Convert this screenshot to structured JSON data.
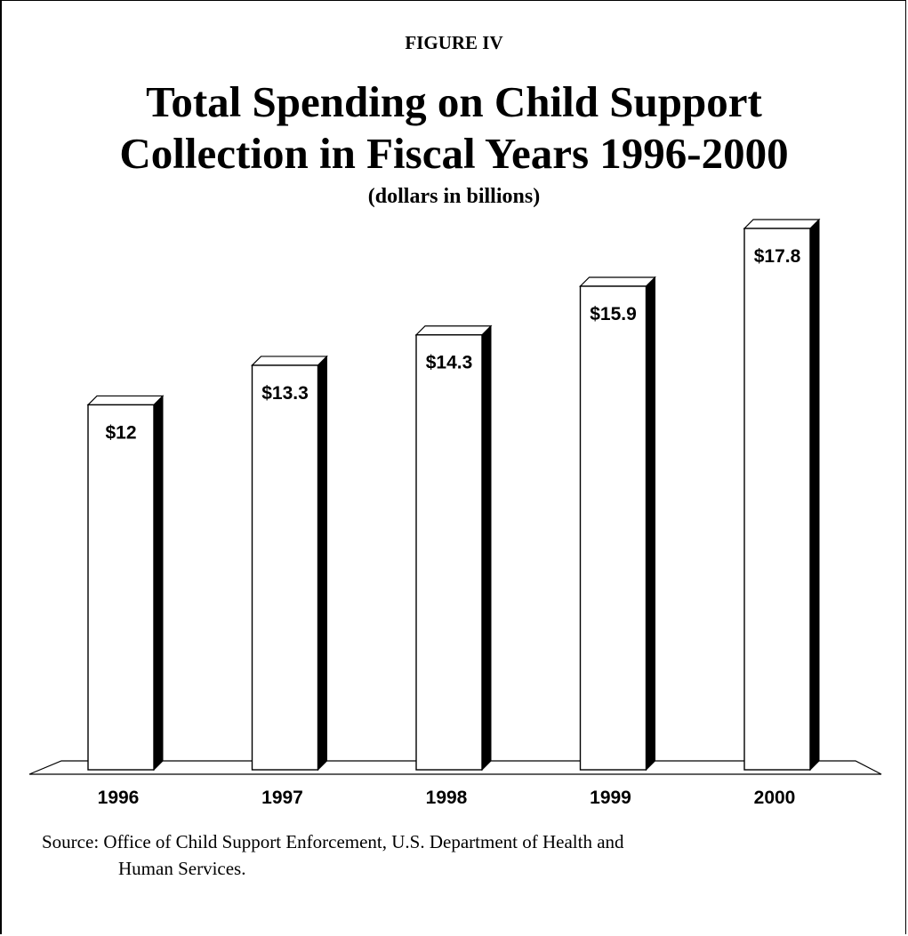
{
  "figure_label": "FIGURE IV",
  "title_lines": [
    "Total Spending on Child Support",
    "Collection in Fiscal Years 1996-2000"
  ],
  "subtitle": "(dollars in billions)",
  "chart_data": {
    "type": "bar",
    "title": "Total Spending on Child Support Collection in Fiscal Years 1996-2000",
    "subtitle": "(dollars in billions)",
    "categories": [
      "1996",
      "1997",
      "1998",
      "1999",
      "2000"
    ],
    "values": [
      12,
      13.3,
      14.3,
      15.9,
      17.8
    ],
    "value_labels": [
      "$12",
      "$13.3",
      "$14.3",
      "$15.9",
      "$17.8"
    ],
    "xlabel": "",
    "ylabel": "",
    "ylim": [
      0,
      17.8
    ],
    "grid": false,
    "style": "3d-bar"
  },
  "source": {
    "line1": "Source: Office of Child Support Enforcement, U.S. Department of Health and",
    "line2": "Human Services."
  },
  "colors": {
    "bar_face": "#ffffff",
    "bar_side": "#000000",
    "ink": "#000000"
  }
}
